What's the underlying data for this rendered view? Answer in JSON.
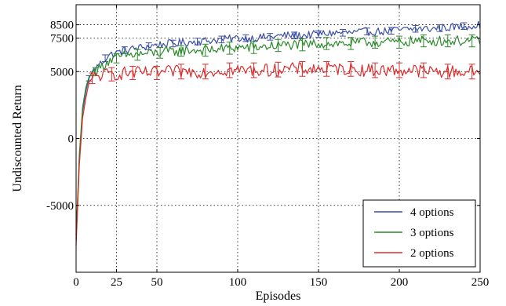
{
  "chart_data": {
    "type": "line",
    "title": "",
    "xlabel": "Episodes",
    "ylabel": "Undiscounted Return",
    "xlim": [
      0,
      250
    ],
    "ylim": [
      -10000,
      10000
    ],
    "x_ticks": [
      0,
      25,
      50,
      100,
      150,
      200,
      250
    ],
    "y_ticks": [
      {
        "value": -5000,
        "label": "-5000"
      },
      {
        "value": 0,
        "label": "0"
      },
      {
        "value": 5000,
        "label": "5000"
      },
      {
        "value": 7500,
        "label": "7500"
      },
      {
        "value": 8500,
        "label": "8500"
      }
    ],
    "grid": true,
    "legend_position": "bottom-right",
    "series": [
      {
        "name": "4 options",
        "color": "#3a4fa3",
        "x": [
          0,
          2,
          4,
          6,
          8,
          10,
          15,
          20,
          25,
          30,
          40,
          50,
          60,
          70,
          80,
          90,
          100,
          110,
          120,
          130,
          140,
          150,
          160,
          170,
          180,
          190,
          200,
          210,
          220,
          230,
          240,
          250
        ],
        "y": [
          -7500,
          -1500,
          2000,
          3500,
          4500,
          5000,
          5600,
          6200,
          6400,
          6600,
          6800,
          7000,
          7100,
          7200,
          7300,
          7400,
          7500,
          7500,
          7600,
          7700,
          7700,
          7800,
          7900,
          7900,
          8000,
          8000,
          8100,
          8200,
          8200,
          8300,
          8400,
          8500
        ],
        "error_bars": [
          {
            "x": 8,
            "y": 4500,
            "err": 200
          },
          {
            "x": 18,
            "y": 6000,
            "err": 250
          },
          {
            "x": 30,
            "y": 6600,
            "err": 250
          },
          {
            "x": 45,
            "y": 6900,
            "err": 250
          },
          {
            "x": 60,
            "y": 7100,
            "err": 250
          },
          {
            "x": 75,
            "y": 7250,
            "err": 250
          },
          {
            "x": 90,
            "y": 7400,
            "err": 250
          },
          {
            "x": 105,
            "y": 7500,
            "err": 250
          },
          {
            "x": 120,
            "y": 7600,
            "err": 250
          },
          {
            "x": 135,
            "y": 7700,
            "err": 250
          },
          {
            "x": 150,
            "y": 7800,
            "err": 250
          },
          {
            "x": 165,
            "y": 7900,
            "err": 250
          },
          {
            "x": 180,
            "y": 8000,
            "err": 250
          },
          {
            "x": 195,
            "y": 8050,
            "err": 250
          },
          {
            "x": 210,
            "y": 8200,
            "err": 250
          },
          {
            "x": 225,
            "y": 8250,
            "err": 250
          },
          {
            "x": 240,
            "y": 8400,
            "err": 250
          }
        ]
      },
      {
        "name": "3 options",
        "color": "#2a8a2a",
        "x": [
          0,
          2,
          4,
          6,
          8,
          10,
          15,
          20,
          25,
          30,
          40,
          50,
          60,
          70,
          80,
          90,
          100,
          110,
          120,
          130,
          140,
          150,
          160,
          170,
          180,
          190,
          200,
          210,
          220,
          230,
          240,
          250
        ],
        "y": [
          -7200,
          -1200,
          2300,
          3800,
          4600,
          4900,
          5300,
          5800,
          6000,
          6200,
          6300,
          6400,
          6500,
          6600,
          6600,
          6700,
          6800,
          6800,
          6900,
          7000,
          7000,
          7100,
          7100,
          7100,
          7200,
          7200,
          7200,
          7300,
          7300,
          7300,
          7300,
          7300
        ],
        "error_bars": [
          {
            "x": 12,
            "y": 5000,
            "err": 300
          },
          {
            "x": 25,
            "y": 6000,
            "err": 350
          },
          {
            "x": 38,
            "y": 6250,
            "err": 400
          },
          {
            "x": 52,
            "y": 6400,
            "err": 400
          },
          {
            "x": 65,
            "y": 6550,
            "err": 400
          },
          {
            "x": 80,
            "y": 6600,
            "err": 450
          },
          {
            "x": 95,
            "y": 6750,
            "err": 450
          },
          {
            "x": 110,
            "y": 6800,
            "err": 450
          },
          {
            "x": 125,
            "y": 6950,
            "err": 450
          },
          {
            "x": 140,
            "y": 7000,
            "err": 450
          },
          {
            "x": 155,
            "y": 7100,
            "err": 450
          },
          {
            "x": 170,
            "y": 7100,
            "err": 450
          },
          {
            "x": 185,
            "y": 7200,
            "err": 450
          },
          {
            "x": 200,
            "y": 7200,
            "err": 450
          },
          {
            "x": 215,
            "y": 7300,
            "err": 450
          },
          {
            "x": 230,
            "y": 7300,
            "err": 450
          },
          {
            "x": 245,
            "y": 7300,
            "err": 450
          }
        ]
      },
      {
        "name": "2 options",
        "color": "#dd2b2b",
        "x": [
          0,
          2,
          4,
          6,
          8,
          10,
          15,
          20,
          25,
          30,
          40,
          50,
          60,
          70,
          80,
          90,
          100,
          110,
          120,
          130,
          140,
          150,
          160,
          170,
          180,
          190,
          200,
          210,
          220,
          230,
          240,
          250
        ],
        "y": [
          -8000,
          -2000,
          1500,
          3000,
          4200,
          4500,
          4700,
          4800,
          4800,
          4900,
          4900,
          4900,
          5000,
          5000,
          5000,
          5100,
          5100,
          5100,
          5100,
          5200,
          5200,
          5200,
          5200,
          5200,
          5100,
          5100,
          5100,
          5100,
          5000,
          5000,
          5000,
          5000
        ],
        "error_bars": [
          {
            "x": 10,
            "y": 4500,
            "err": 400
          },
          {
            "x": 22,
            "y": 4800,
            "err": 500
          },
          {
            "x": 35,
            "y": 4900,
            "err": 500
          },
          {
            "x": 50,
            "y": 4900,
            "err": 500
          },
          {
            "x": 65,
            "y": 5000,
            "err": 550
          },
          {
            "x": 80,
            "y": 5000,
            "err": 550
          },
          {
            "x": 95,
            "y": 5100,
            "err": 550
          },
          {
            "x": 110,
            "y": 5100,
            "err": 550
          },
          {
            "x": 125,
            "y": 5150,
            "err": 550
          },
          {
            "x": 140,
            "y": 5200,
            "err": 550
          },
          {
            "x": 155,
            "y": 5200,
            "err": 550
          },
          {
            "x": 170,
            "y": 5200,
            "err": 550
          },
          {
            "x": 185,
            "y": 5100,
            "err": 550
          },
          {
            "x": 200,
            "y": 5100,
            "err": 550
          },
          {
            "x": 215,
            "y": 5100,
            "err": 550
          },
          {
            "x": 230,
            "y": 5000,
            "err": 550
          },
          {
            "x": 245,
            "y": 5000,
            "err": 550
          }
        ]
      }
    ]
  }
}
